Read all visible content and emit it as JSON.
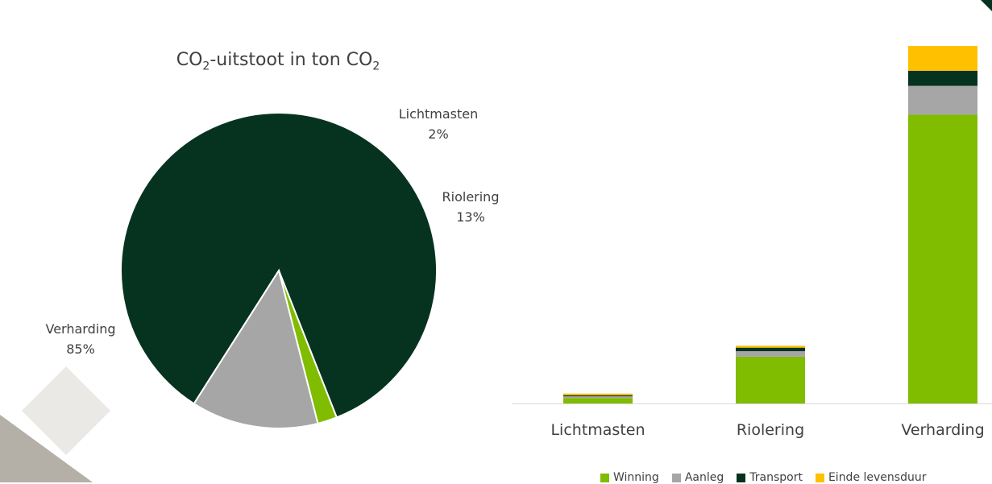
{
  "chart_data": [
    {
      "type": "pie",
      "title_prefix": "CO",
      "title_sub1": "2",
      "title_middle": "-uitstoot in ton CO",
      "title_sub2": "2",
      "slices": [
        {
          "label": "Verharding",
          "percent_label": "85%",
          "value": 85,
          "color": "#063320"
        },
        {
          "label": "Lichtmasten",
          "percent_label": "2%",
          "value": 2,
          "color": "#80bc00"
        },
        {
          "label": "Riolering",
          "percent_label": "13%",
          "value": 13,
          "color": "#a6a6a6"
        }
      ]
    },
    {
      "type": "bar",
      "stacked": true,
      "categories": [
        "Lichtmasten",
        "Riolering",
        "Verharding"
      ],
      "series": [
        {
          "name": "Winning",
          "color": "#80bc00",
          "values": [
            2,
            17,
            105
          ]
        },
        {
          "name": "Aanleg",
          "color": "#a6a6a6",
          "values": [
            0.6,
            2,
            10.5
          ]
        },
        {
          "name": "Transport",
          "color": "#063320",
          "values": [
            0.4,
            1.3,
            5.5
          ]
        },
        {
          "name": "Einde levensduur",
          "color": "#ffc000",
          "values": [
            0.6,
            0.7,
            9
          ]
        }
      ],
      "ylim": [
        0,
        135
      ],
      "grid": false,
      "legend_position": "bottom"
    }
  ]
}
